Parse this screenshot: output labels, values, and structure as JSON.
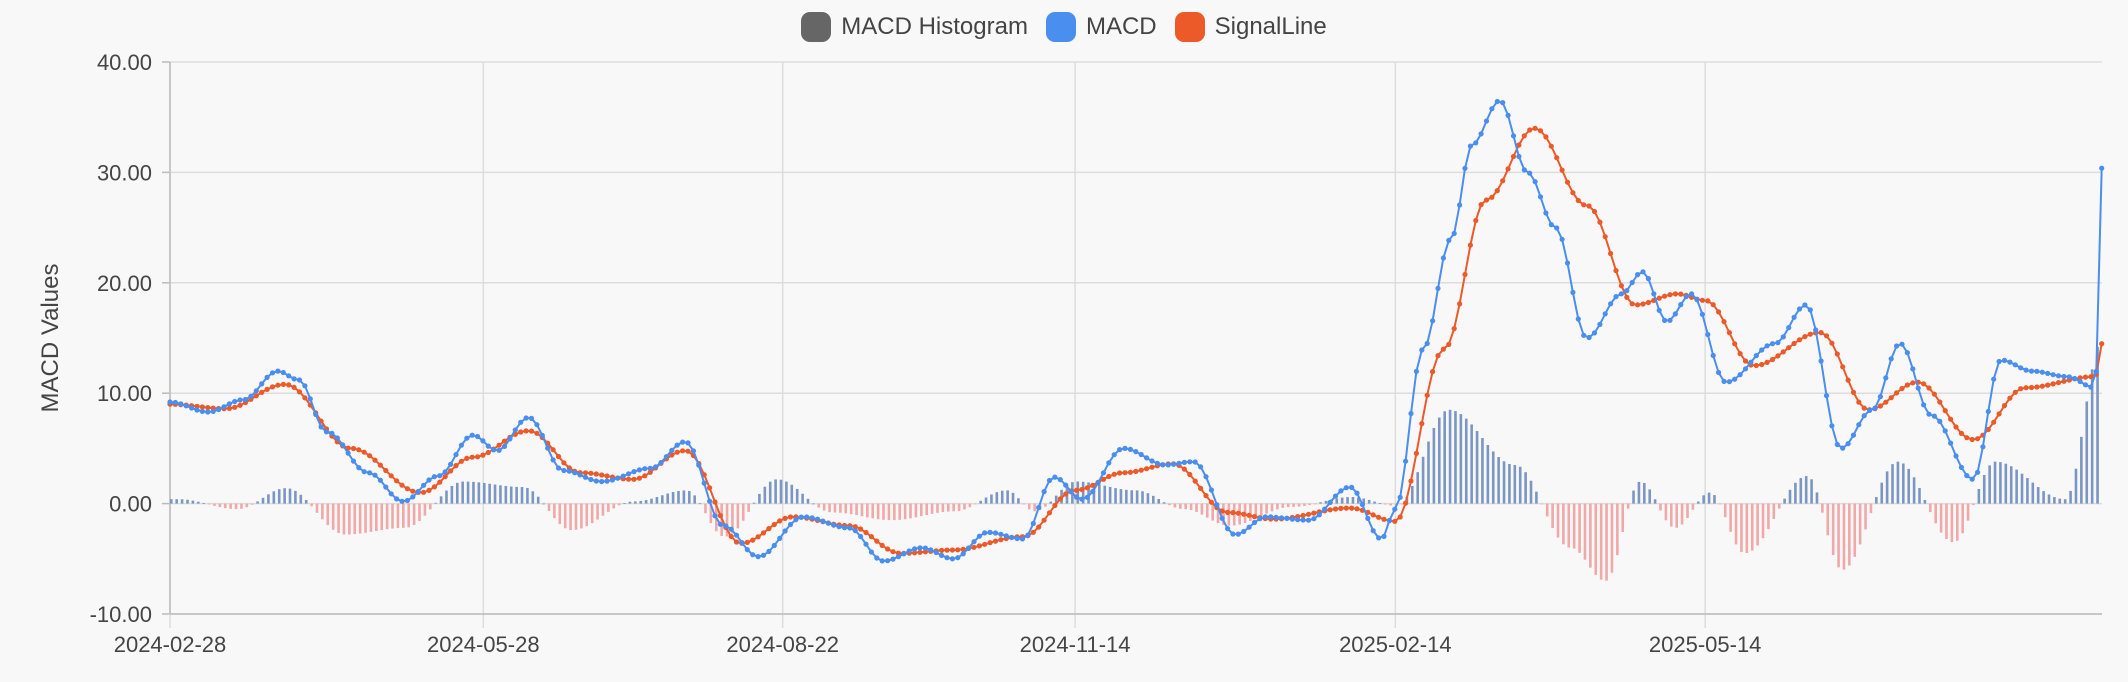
{
  "chart_data": {
    "type": "line",
    "title": "",
    "ylabel": "MACD Values",
    "xlabel": "",
    "ylim": [
      -10,
      40
    ],
    "yticks": [
      "-10.00",
      "0.00",
      "10.00",
      "20.00",
      "30.00",
      "40.00"
    ],
    "xticks": [
      "2024-02-28",
      "2024-05-28",
      "2024-08-22",
      "2024-11-14",
      "2025-02-14",
      "2025-05-14"
    ],
    "x_range": [
      "2024-02-28",
      "2025-09-05"
    ],
    "grid": true,
    "legend_position": "top-center",
    "legend": [
      "MACD Histogram",
      "MACD",
      "SignalLine"
    ],
    "colors": {
      "histogram": "#666666",
      "histogram_positive": "#7b96c2",
      "histogram_negative": "#f0a8a8",
      "macd": "#4a8ef0",
      "signal": "#ec5a2a"
    },
    "series": [
      {
        "name": "MACD",
        "points": [
          [
            "2024-02-28",
            9.2
          ],
          [
            "2024-03-10",
            8.3
          ],
          [
            "2024-03-20",
            9.4
          ],
          [
            "2024-03-30",
            12.0
          ],
          [
            "2024-04-05",
            11.2
          ],
          [
            "2024-04-13",
            6.5
          ],
          [
            "2024-04-25",
            2.8
          ],
          [
            "2024-05-05",
            0.2
          ],
          [
            "2024-05-15",
            2.5
          ],
          [
            "2024-05-25",
            6.2
          ],
          [
            "2024-06-01",
            4.8
          ],
          [
            "2024-06-10",
            7.8
          ],
          [
            "2024-06-20",
            3.0
          ],
          [
            "2024-07-01",
            2.0
          ],
          [
            "2024-07-15",
            3.2
          ],
          [
            "2024-07-25",
            5.6
          ],
          [
            "2024-08-05",
            -2.0
          ],
          [
            "2024-08-15",
            -4.8
          ],
          [
            "2024-08-28",
            -1.2
          ],
          [
            "2024-09-10",
            -2.2
          ],
          [
            "2024-09-20",
            -5.2
          ],
          [
            "2024-10-01",
            -4.0
          ],
          [
            "2024-10-10",
            -5.0
          ],
          [
            "2024-10-20",
            -2.6
          ],
          [
            "2024-10-30",
            -3.2
          ],
          [
            "2024-11-08",
            2.4
          ],
          [
            "2024-11-16",
            0.4
          ],
          [
            "2024-11-28",
            5.0
          ],
          [
            "2024-12-10",
            3.5
          ],
          [
            "2024-12-18",
            3.8
          ],
          [
            "2024-12-30",
            -2.8
          ],
          [
            "2025-01-08",
            -1.2
          ],
          [
            "2025-01-20",
            -1.5
          ],
          [
            "2025-02-01",
            1.5
          ],
          [
            "2025-02-10",
            -3.2
          ],
          [
            "2025-02-14",
            -0.5
          ],
          [
            "2025-02-22",
            14.0
          ],
          [
            "2025-03-02",
            24.0
          ],
          [
            "2025-03-08",
            32.5
          ],
          [
            "2025-03-16",
            36.5
          ],
          [
            "2025-03-24",
            30.0
          ],
          [
            "2025-04-01",
            25.0
          ],
          [
            "2025-04-10",
            15.0
          ],
          [
            "2025-04-20",
            19.0
          ],
          [
            "2025-04-26",
            21.0
          ],
          [
            "2025-05-03",
            16.5
          ],
          [
            "2025-05-10",
            19.0
          ],
          [
            "2025-05-20",
            11.0
          ],
          [
            "2025-06-03",
            14.5
          ],
          [
            "2025-06-12",
            18.0
          ],
          [
            "2025-06-22",
            5.0
          ],
          [
            "2025-07-01",
            8.5
          ],
          [
            "2025-07-09",
            14.5
          ],
          [
            "2025-07-18",
            8.0
          ],
          [
            "2025-07-30",
            2.2
          ],
          [
            "2025-08-07",
            13.0
          ],
          [
            "2025-08-16",
            12.0
          ],
          [
            "2025-08-26",
            11.5
          ],
          [
            "2025-09-03",
            10.5
          ],
          [
            "2025-09-05",
            30.5
          ]
        ]
      },
      {
        "name": "SignalLine",
        "points": [
          [
            "2024-02-28",
            9.0
          ],
          [
            "2024-03-15",
            8.6
          ],
          [
            "2024-04-01",
            10.8
          ],
          [
            "2024-04-20",
            5.0
          ],
          [
            "2024-05-10",
            1.0
          ],
          [
            "2024-05-25",
            4.2
          ],
          [
            "2024-06-10",
            6.6
          ],
          [
            "2024-06-25",
            2.8
          ],
          [
            "2024-07-10",
            2.2
          ],
          [
            "2024-07-25",
            4.8
          ],
          [
            "2024-08-10",
            -3.6
          ],
          [
            "2024-08-25",
            -1.2
          ],
          [
            "2024-09-10",
            -2.0
          ],
          [
            "2024-09-25",
            -4.5
          ],
          [
            "2024-10-10",
            -4.2
          ],
          [
            "2024-10-30",
            -3.0
          ],
          [
            "2024-11-14",
            1.2
          ],
          [
            "2024-11-28",
            2.8
          ],
          [
            "2024-12-12",
            3.6
          ],
          [
            "2024-12-28",
            -0.8
          ],
          [
            "2025-01-10",
            -1.4
          ],
          [
            "2025-02-01",
            -0.4
          ],
          [
            "2025-02-14",
            -1.6
          ],
          [
            "2025-02-28",
            14.0
          ],
          [
            "2025-03-12",
            27.5
          ],
          [
            "2025-03-26",
            34.0
          ],
          [
            "2025-04-10",
            27.0
          ],
          [
            "2025-04-24",
            18.0
          ],
          [
            "2025-05-06",
            19.0
          ],
          [
            "2025-05-14",
            18.4
          ],
          [
            "2025-05-28",
            12.5
          ],
          [
            "2025-06-16",
            15.5
          ],
          [
            "2025-06-30",
            8.5
          ],
          [
            "2025-07-14",
            11.0
          ],
          [
            "2025-07-30",
            5.8
          ],
          [
            "2025-08-14",
            10.5
          ],
          [
            "2025-09-03",
            11.5
          ],
          [
            "2025-09-05",
            14.5
          ]
        ]
      },
      {
        "name": "MACD Histogram",
        "type": "bar",
        "points": [
          [
            "2024-03-01",
            0.4
          ],
          [
            "2024-03-18",
            -0.5
          ],
          [
            "2024-04-01",
            1.4
          ],
          [
            "2024-04-18",
            -2.8
          ],
          [
            "2024-05-05",
            -2.2
          ],
          [
            "2024-05-22",
            2.0
          ],
          [
            "2024-06-08",
            1.5
          ],
          [
            "2024-06-22",
            -2.4
          ],
          [
            "2024-07-10",
            0.2
          ],
          [
            "2024-07-25",
            1.2
          ],
          [
            "2024-08-05",
            -3.0
          ],
          [
            "2024-08-20",
            2.2
          ],
          [
            "2024-09-05",
            -0.8
          ],
          [
            "2024-09-22",
            -1.5
          ],
          [
            "2024-10-10",
            -0.7
          ],
          [
            "2024-10-25",
            1.2
          ],
          [
            "2024-11-02",
            -0.7
          ],
          [
            "2024-11-14",
            2.0
          ],
          [
            "2024-12-01",
            1.2
          ],
          [
            "2024-12-15",
            -0.5
          ],
          [
            "2024-12-28",
            -2.0
          ],
          [
            "2025-01-15",
            -0.3
          ],
          [
            "2025-02-01",
            0.6
          ],
          [
            "2025-02-14",
            -0.2
          ],
          [
            "2025-03-01",
            8.5
          ],
          [
            "2025-03-20",
            3.5
          ],
          [
            "2025-04-05",
            -4.0
          ],
          [
            "2025-04-15",
            -7.0
          ],
          [
            "2025-04-25",
            2.0
          ],
          [
            "2025-05-05",
            -2.2
          ],
          [
            "2025-05-15",
            1.0
          ],
          [
            "2025-05-25",
            -4.5
          ],
          [
            "2025-06-12",
            2.5
          ],
          [
            "2025-06-22",
            -6.0
          ],
          [
            "2025-07-08",
            3.8
          ],
          [
            "2025-07-24",
            -3.5
          ],
          [
            "2025-08-05",
            3.8
          ],
          [
            "2025-08-25",
            0.4
          ],
          [
            "2025-09-05",
            15.0
          ]
        ]
      }
    ]
  }
}
